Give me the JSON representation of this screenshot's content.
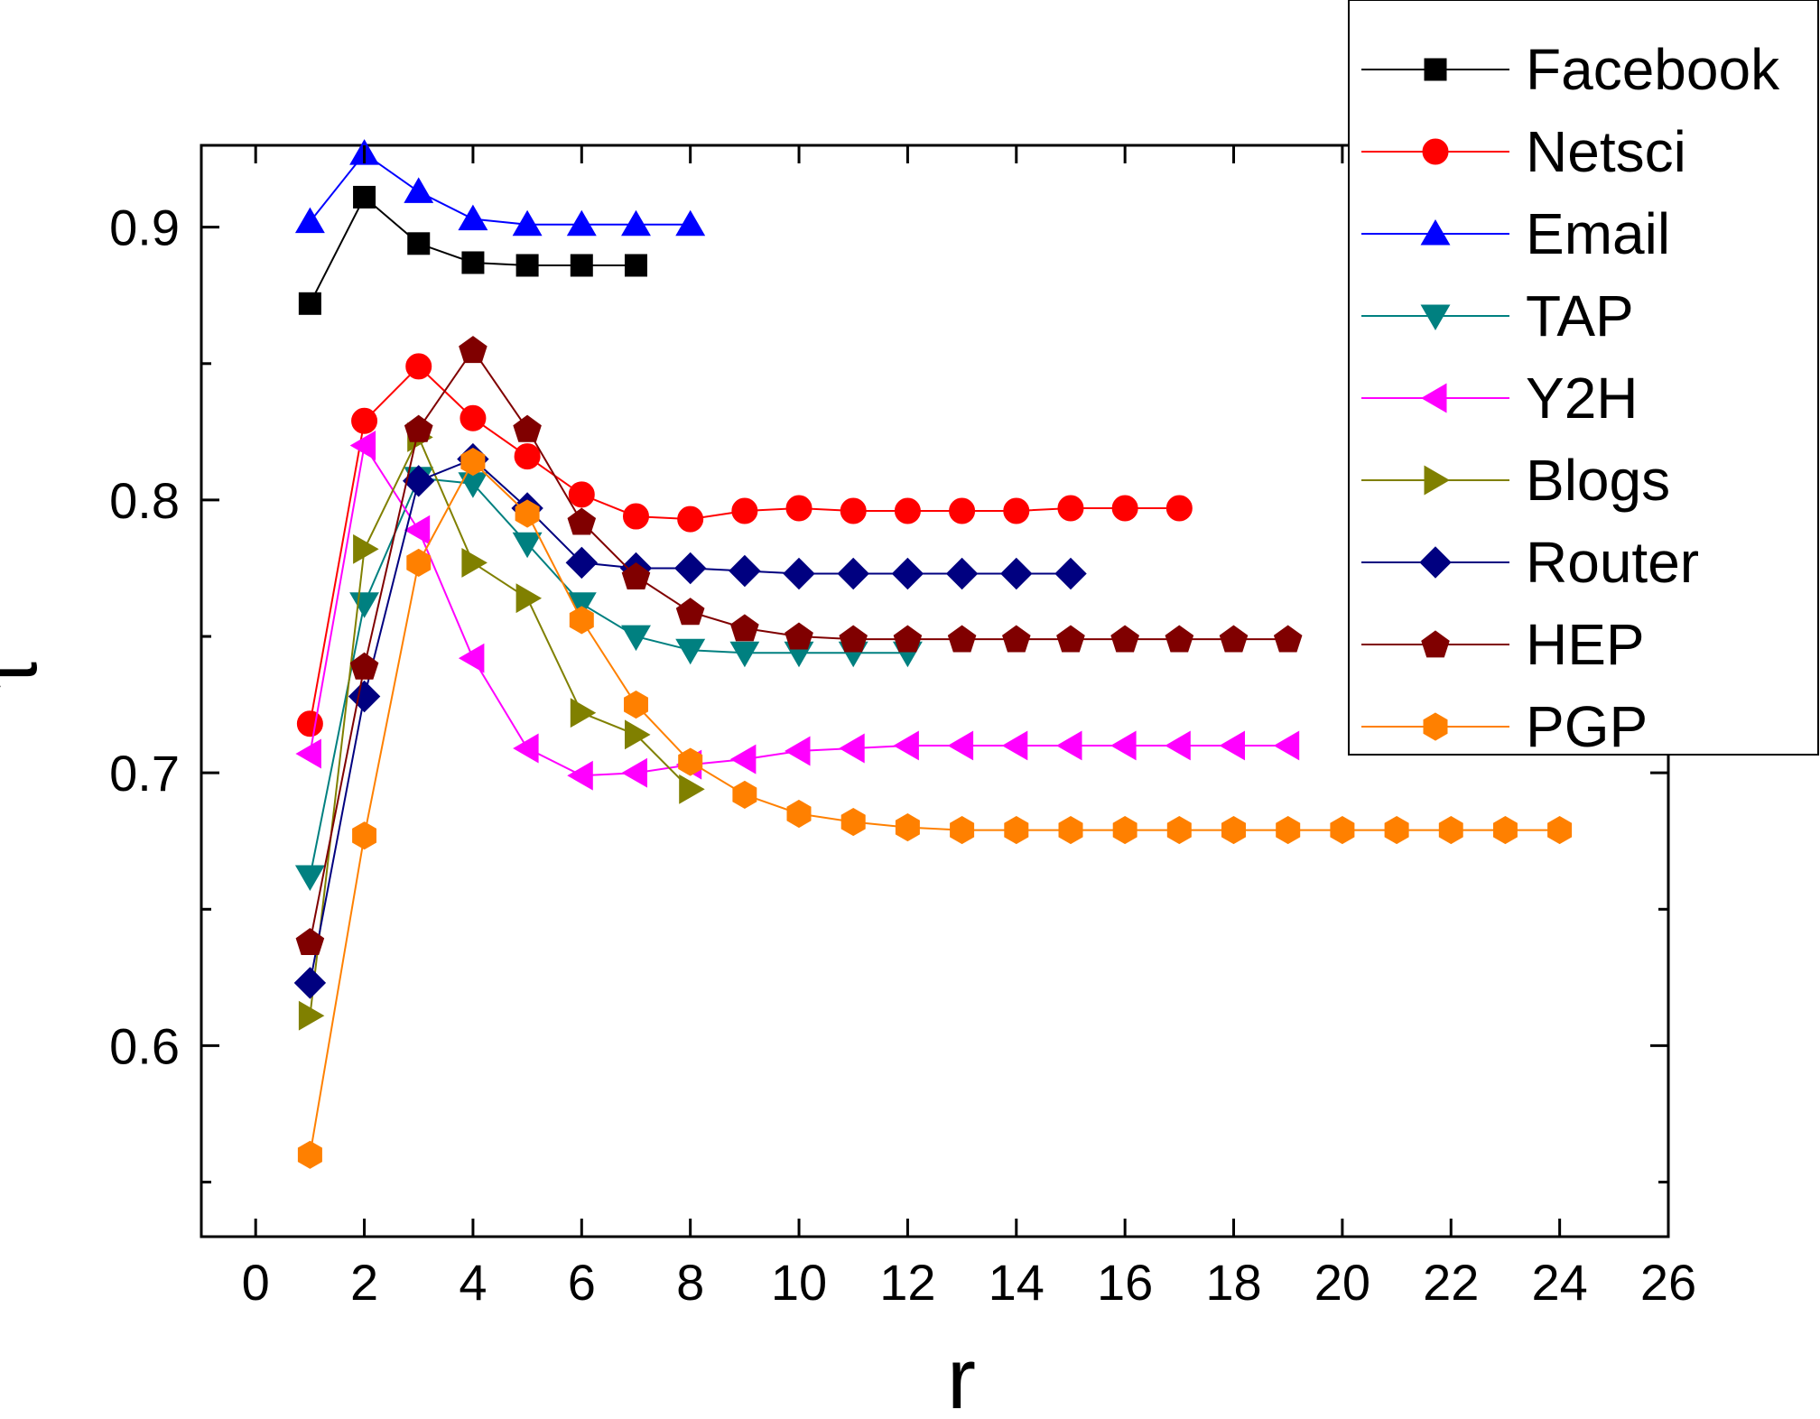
{
  "chart_data": {
    "type": "line",
    "title": "",
    "xlabel": "r",
    "ylabel": "τ",
    "xlim": [
      -1,
      26
    ],
    "ylim": [
      0.53,
      0.93
    ],
    "xticks": [
      0,
      2,
      4,
      6,
      8,
      10,
      12,
      14,
      16,
      18,
      20,
      22,
      24,
      26
    ],
    "xtick_labels": [
      "0",
      "2",
      "4",
      "6",
      "8",
      "10",
      "12",
      "14",
      "16",
      "18",
      "20",
      "22",
      "24",
      "26"
    ],
    "yticks": [
      0.6,
      0.7,
      0.8,
      0.9
    ],
    "ytick_labels": [
      "0.6",
      "0.7",
      "0.8",
      "0.9"
    ],
    "yminor": [
      0.55,
      0.65,
      0.75,
      0.85
    ],
    "grid": false,
    "legend_position": "top-right",
    "series": [
      {
        "name": "Facebook",
        "color": "#000000",
        "marker": "square",
        "x": [
          1,
          2,
          3,
          4,
          5,
          6,
          7
        ],
        "y": [
          0.872,
          0.911,
          0.894,
          0.887,
          0.886,
          0.886,
          0.886
        ]
      },
      {
        "name": "Netsci",
        "color": "#ff0000",
        "marker": "circle",
        "x": [
          1,
          2,
          3,
          4,
          5,
          6,
          7,
          8,
          9,
          10,
          11,
          12,
          13,
          14,
          15,
          16,
          17
        ],
        "y": [
          0.718,
          0.829,
          0.849,
          0.83,
          0.816,
          0.802,
          0.794,
          0.793,
          0.796,
          0.797,
          0.796,
          0.796,
          0.796,
          0.796,
          0.797,
          0.797,
          0.797
        ]
      },
      {
        "name": "Email",
        "color": "#0000ff",
        "marker": "triangle-up",
        "x": [
          1,
          2,
          3,
          4,
          5,
          6,
          7,
          8
        ],
        "y": [
          0.902,
          0.927,
          0.913,
          0.903,
          0.901,
          0.901,
          0.901,
          0.901
        ]
      },
      {
        "name": "TAP",
        "color": "#008080",
        "marker": "triangle-down",
        "x": [
          1,
          2,
          3,
          4,
          5,
          6,
          7,
          8,
          9,
          10,
          11,
          12
        ],
        "y": [
          0.662,
          0.762,
          0.808,
          0.806,
          0.784,
          0.762,
          0.75,
          0.745,
          0.744,
          0.744,
          0.744,
          0.744
        ]
      },
      {
        "name": "Y2H",
        "color": "#ff00ff",
        "marker": "triangle-left",
        "x": [
          1,
          2,
          3,
          4,
          5,
          6,
          7,
          8,
          9,
          10,
          11,
          12,
          13,
          14,
          15,
          16,
          17,
          18,
          19
        ],
        "y": [
          0.707,
          0.82,
          0.789,
          0.742,
          0.709,
          0.699,
          0.7,
          0.703,
          0.705,
          0.708,
          0.709,
          0.71,
          0.71,
          0.71,
          0.71,
          0.71,
          0.71,
          0.71,
          0.71
        ]
      },
      {
        "name": "Blogs",
        "color": "#808000",
        "marker": "triangle-right",
        "x": [
          1,
          2,
          3,
          4,
          5,
          6,
          7,
          8
        ],
        "y": [
          0.611,
          0.782,
          0.823,
          0.777,
          0.764,
          0.722,
          0.714,
          0.694
        ]
      },
      {
        "name": "Router",
        "color": "#000080",
        "marker": "diamond",
        "x": [
          1,
          2,
          3,
          4,
          5,
          6,
          7,
          8,
          9,
          10,
          11,
          12,
          13,
          14,
          15
        ],
        "y": [
          0.623,
          0.728,
          0.807,
          0.815,
          0.797,
          0.777,
          0.775,
          0.775,
          0.774,
          0.773,
          0.773,
          0.773,
          0.773,
          0.773,
          0.773
        ]
      },
      {
        "name": "HEP",
        "color": "#800000",
        "marker": "pentagon",
        "x": [
          1,
          2,
          3,
          4,
          5,
          6,
          7,
          8,
          9,
          10,
          11,
          12,
          13,
          14,
          15,
          16,
          17,
          18,
          19
        ],
        "y": [
          0.638,
          0.739,
          0.826,
          0.855,
          0.826,
          0.792,
          0.772,
          0.759,
          0.753,
          0.75,
          0.749,
          0.749,
          0.749,
          0.749,
          0.749,
          0.749,
          0.749,
          0.749,
          0.749
        ]
      },
      {
        "name": "PGP",
        "color": "#ff8000",
        "marker": "hexagon",
        "x": [
          1,
          2,
          3,
          4,
          5,
          6,
          7,
          8,
          9,
          10,
          11,
          12,
          13,
          14,
          15,
          16,
          17,
          18,
          19,
          20,
          21,
          22,
          23,
          24
        ],
        "y": [
          0.56,
          0.677,
          0.777,
          0.814,
          0.795,
          0.756,
          0.725,
          0.704,
          0.692,
          0.685,
          0.682,
          0.68,
          0.679,
          0.679,
          0.679,
          0.679,
          0.679,
          0.679,
          0.679,
          0.679,
          0.679,
          0.679,
          0.679,
          0.679
        ]
      }
    ]
  }
}
